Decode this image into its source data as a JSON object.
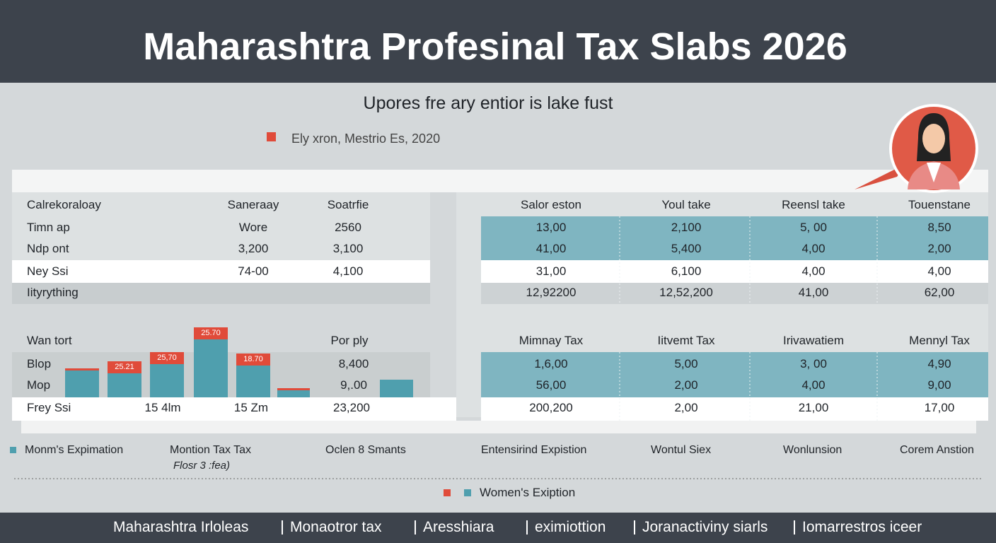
{
  "header": {
    "title": "Maharashtra Profesinal Tax Slabs 2026"
  },
  "subtitle": "Upores fre ary entior is lake fust",
  "source_note": "Ely xron, Mestrio Es, 2020",
  "left_table": {
    "header": [
      "Calrekoraloay",
      "Saneraay",
      "Soatrfie"
    ],
    "rows": [
      [
        "Timn ap",
        "Wore",
        "2560"
      ],
      [
        "Ndp ont",
        "3,200",
        "3,100"
      ],
      [
        "Ney Ssi",
        "74-00",
        "4,100"
      ],
      [
        "Iityrything"
      ]
    ]
  },
  "right_table": {
    "header": [
      "Salor eston",
      "Youl take",
      "Reensl take",
      "Touenstane"
    ],
    "rows": [
      [
        "13,00",
        "2,100",
        "5, 00",
        "8,50"
      ],
      [
        "41,00",
        "5,400",
        "4,00",
        "2,00"
      ],
      [
        "31,00",
        "6,100",
        "4,00",
        "4,00"
      ],
      [
        "12,92200",
        "12,52,200",
        "41,00",
        "62,00"
      ]
    ]
  },
  "left_lower": {
    "header": [
      "Wan tort",
      "Por ply"
    ],
    "bar_labels": [
      "25.21",
      "25,70",
      "25.70",
      "18.70"
    ],
    "rows": [
      [
        "Blop",
        "8,400"
      ],
      [
        "Mop",
        "9,.00"
      ],
      [
        "Frey Ssi",
        "15 4lm",
        "15 Zm",
        "23,200"
      ]
    ]
  },
  "right_lower": {
    "header": [
      "Mimnay Tax",
      "Iitvemt Tax",
      "Irivawatiem",
      "Mennyl Tax"
    ],
    "rows": [
      [
        "1,6,00",
        "5,00",
        "3, 00",
        "4,90"
      ],
      [
        "56,00",
        "2,00",
        "4,00",
        "9,00"
      ],
      [
        "200,200",
        "2,00",
        "21,00",
        "17,00"
      ]
    ]
  },
  "legend_row": [
    "Monm's Expimation",
    "Montion Tax Tax",
    "Oclen 8 Smants",
    "Entensirind Expistion",
    "Wontul Siex",
    "Wonlunsion",
    "Corem Anstion"
  ],
  "legend_note": "Flosr 3 :fea)",
  "legend": "Women's Exiption",
  "footer": [
    "Maharashtra Irloleas",
    "Monaotror tax",
    "Aresshiara",
    "eximiottion",
    "Joranactiviny siarls",
    "Iomarrestros iceer"
  ]
}
